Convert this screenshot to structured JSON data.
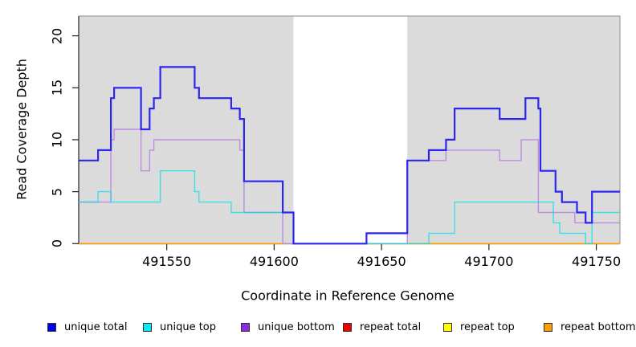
{
  "chart_data": {
    "type": "step-line",
    "xlabel": "Coordinate in Reference Genome",
    "ylabel": "Read Coverage Depth",
    "xlim": [
      491509,
      491761
    ],
    "ylim": [
      0,
      21.9
    ],
    "x_ticks": [
      491550,
      491600,
      491650,
      491700,
      491750
    ],
    "y_ticks": [
      0,
      5,
      10,
      15,
      20
    ],
    "grid": false,
    "plot_bg": "#ffffff",
    "shaded_band_color": "#DBDBDB",
    "shaded_regions": [
      [
        491509,
        491609
      ],
      [
        491662,
        491761
      ]
    ],
    "series": [
      {
        "name": "repeat total",
        "color": "#DD0000",
        "width": 1.2,
        "opacity": 1,
        "steps": [
          [
            491509,
            0
          ]
        ],
        "x_end": 491761
      },
      {
        "name": "repeat top",
        "color": "#EDED00",
        "width": 1.2,
        "opacity": 1,
        "steps": [
          [
            491509,
            0
          ]
        ],
        "x_end": 491761
      },
      {
        "name": "repeat bottom",
        "color": "#FF9D00",
        "width": 1.7,
        "opacity": 1,
        "steps": [
          [
            491509,
            0
          ]
        ],
        "x_end": 491761
      },
      {
        "name": "unique bottom",
        "color": "#BE87E2",
        "width": 1.4,
        "opacity": 0.95,
        "steps": [
          [
            491509,
            4
          ],
          [
            491524,
            10
          ],
          [
            491525.5,
            11
          ],
          [
            491538,
            7
          ],
          [
            491542,
            9
          ],
          [
            491544,
            10
          ],
          [
            491584,
            9
          ],
          [
            491586,
            3
          ],
          [
            491604,
            0
          ],
          [
            491662,
            8
          ],
          [
            491680,
            9
          ],
          [
            491705,
            8
          ],
          [
            491715,
            10
          ],
          [
            491723,
            3
          ],
          [
            491740,
            2
          ]
        ],
        "x_end": 491761
      },
      {
        "name": "unique top",
        "color": "#00DFE8",
        "width": 1.4,
        "opacity": 0.72,
        "steps": [
          [
            491509,
            4
          ],
          [
            491518,
            5
          ],
          [
            491524,
            4
          ],
          [
            491547,
            7
          ],
          [
            491563,
            5
          ],
          [
            491565,
            4
          ],
          [
            491580,
            3
          ],
          [
            491609,
            0
          ],
          [
            491672,
            1
          ],
          [
            491684,
            4
          ],
          [
            491730,
            2
          ],
          [
            491733,
            1
          ],
          [
            491745,
            0
          ],
          [
            491748,
            3
          ]
        ],
        "x_end": 491761
      },
      {
        "name": "unique total",
        "color": "#2A26EE",
        "width": 2.2,
        "opacity": 1,
        "steps": [
          [
            491509,
            8
          ],
          [
            491518,
            9
          ],
          [
            491524,
            14
          ],
          [
            491525.5,
            15
          ],
          [
            491538,
            11
          ],
          [
            491542,
            13
          ],
          [
            491544,
            14
          ],
          [
            491547,
            17
          ],
          [
            491563,
            15
          ],
          [
            491565,
            14
          ],
          [
            491580,
            13
          ],
          [
            491584,
            12
          ],
          [
            491586,
            6
          ],
          [
            491604,
            3
          ],
          [
            491609,
            0
          ],
          [
            491643,
            1
          ],
          [
            491662,
            8
          ],
          [
            491672,
            9
          ],
          [
            491680,
            10
          ],
          [
            491684,
            13
          ],
          [
            491705,
            12
          ],
          [
            491717,
            14
          ],
          [
            491723,
            13
          ],
          [
            491724,
            7
          ],
          [
            491731,
            5
          ],
          [
            491734,
            4
          ],
          [
            491741,
            3
          ],
          [
            491745,
            2
          ],
          [
            491748,
            5
          ]
        ],
        "x_end": 491761
      },
      {
        "name": "gap",
        "color": "none",
        "width": 0,
        "opacity": 0,
        "steps": [],
        "x_end": 491761
      }
    ],
    "legend": [
      {
        "label": "unique total",
        "color": "#0000EE"
      },
      {
        "label": "unique top",
        "color": "#00EEEE"
      },
      {
        "label": "unique bottom",
        "color": "#8B2BE2"
      },
      {
        "label": "repeat total",
        "color": "#EE0000"
      },
      {
        "label": "repeat top",
        "color": "#FFFF00"
      },
      {
        "label": "repeat bottom",
        "color": "#FF9D00"
      }
    ]
  }
}
